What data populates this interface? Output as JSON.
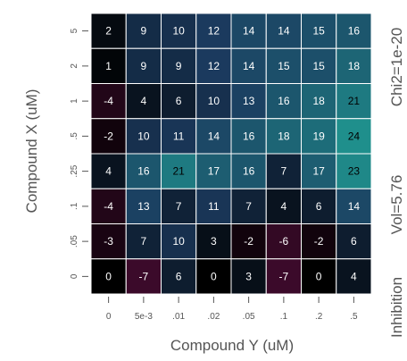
{
  "chart_data": {
    "type": "heatmap",
    "xlabel": "Compound Y (uM)",
    "ylabel": "Compound X (uM)",
    "x_ticks": [
      "0",
      "5e-3",
      ".01",
      ".02",
      ".05",
      ".1",
      ".2",
      ".5"
    ],
    "y_ticks": [
      "5",
      "2",
      "1",
      ".5",
      ".25",
      ".1",
      ".05",
      "0"
    ],
    "values": [
      [
        2,
        9,
        10,
        12,
        14,
        14,
        15,
        16
      ],
      [
        1,
        9,
        9,
        12,
        14,
        15,
        15,
        18
      ],
      [
        -4,
        4,
        6,
        10,
        13,
        16,
        18,
        21
      ],
      [
        -2,
        10,
        11,
        14,
        16,
        18,
        19,
        24
      ],
      [
        4,
        16,
        21,
        17,
        16,
        7,
        17,
        23
      ],
      [
        -4,
        13,
        7,
        11,
        7,
        4,
        6,
        14
      ],
      [
        -3,
        7,
        10,
        3,
        -2,
        -6,
        -2,
        6
      ],
      [
        0,
        -7,
        6,
        0,
        3,
        -7,
        0,
        4
      ]
    ],
    "side_labels": [
      "Inhibition",
      "Vol=5.76",
      "Chi2=1e-20"
    ],
    "colors": {
      "negative": "#3b0a2a",
      "zero": "#000000",
      "mid": "#1b3a5e",
      "high": "#1f8f8c",
      "label_light": "#ffffff",
      "label_dark": "#000000",
      "grid": "#ffffff",
      "tick": "#555555"
    }
  }
}
